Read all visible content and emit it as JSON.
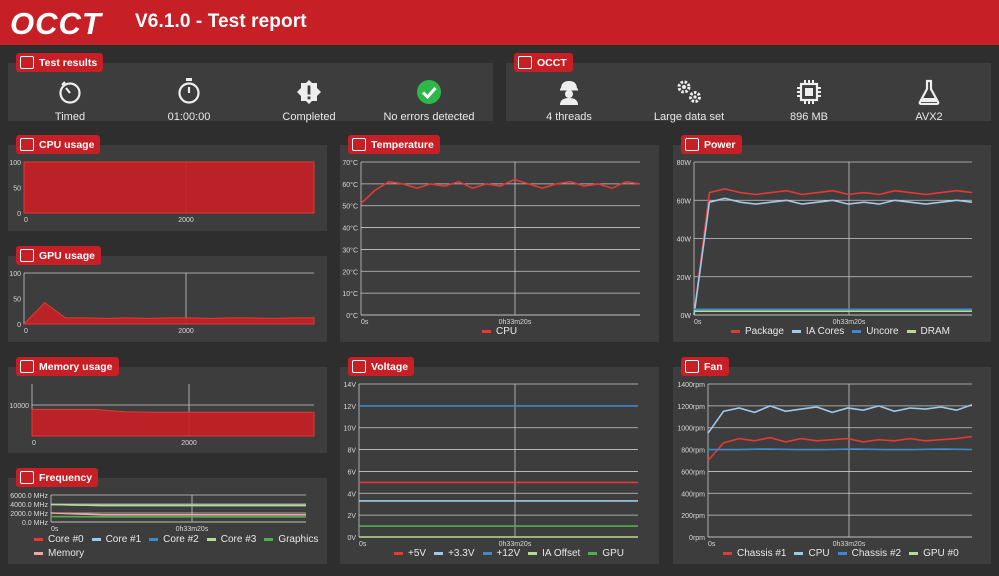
{
  "header": {
    "logo_text": "OCCT",
    "title": "V6.1.0 - Test report"
  },
  "test_results": {
    "label": "Test results",
    "items": [
      {
        "icon": "timer-icon",
        "label": "Timed"
      },
      {
        "icon": "stopwatch-icon",
        "label": "01:00:00"
      },
      {
        "icon": "alert-badge-icon",
        "label": "Completed"
      },
      {
        "icon": "check-circle-icon",
        "label": "No errors detected"
      }
    ]
  },
  "occt_info": {
    "label": "OCCT",
    "items": [
      {
        "icon": "worker-icon",
        "label": "4 threads"
      },
      {
        "icon": "gears-icon",
        "label": "Large data set"
      },
      {
        "icon": "chip-icon",
        "label": "896 MB"
      },
      {
        "icon": "flask-icon",
        "label": "AVX2"
      }
    ]
  },
  "colors": {
    "accent": "#c62026",
    "panel": "#3d3d3d",
    "background": "#2e2e2e",
    "grid": "#cfcfcf"
  },
  "chart_data": [
    {
      "id": "cpu",
      "title": "CPU usage",
      "type": "area",
      "y_ticks": [
        "100",
        "50",
        "0"
      ],
      "x_ticks": [
        "0",
        "2000"
      ],
      "ylim": [
        0,
        100
      ],
      "series": [
        {
          "values": [
            100,
            100,
            100,
            100,
            100,
            100,
            100,
            100,
            100,
            100
          ],
          "color": "#c62026"
        }
      ]
    },
    {
      "id": "gpu",
      "title": "GPU usage",
      "type": "area",
      "y_ticks": [
        "100",
        "50",
        "0"
      ],
      "x_ticks": [
        "0",
        "2000"
      ],
      "ylim": [
        0,
        100
      ],
      "series": [
        {
          "values": [
            0,
            42,
            12,
            12,
            11,
            12,
            11,
            12,
            12,
            11,
            12,
            12,
            11,
            12,
            12
          ],
          "color": "#c62026"
        }
      ]
    },
    {
      "id": "memory",
      "title": "Memory usage",
      "type": "area",
      "y_ticks": [
        "10000"
      ],
      "x_ticks": [
        "0",
        "2000"
      ],
      "ylim": [
        0,
        16000
      ],
      "series": [
        {
          "values": [
            8200,
            8200,
            8200,
            7400,
            7300,
            7300,
            7300,
            7300,
            7300,
            7300
          ],
          "color": "#c62026"
        }
      ]
    },
    {
      "id": "frequency",
      "title": "Frequency",
      "type": "line",
      "y_ticks": [
        "6000.0 MHz",
        "4000.0 MHz",
        "2000.0 MHz",
        "0.0 MHz"
      ],
      "x_ticks": [
        "0s",
        "0h33m20s"
      ],
      "ylim": [
        0,
        6000
      ],
      "series": [
        {
          "name": "Core #0",
          "values": [
            3900,
            3700,
            3700,
            3700,
            3700,
            3700
          ],
          "color": "#e53935"
        },
        {
          "name": "Core #1",
          "values": [
            3900,
            3700,
            3700,
            3700,
            3700,
            3700
          ],
          "color": "#9ecae8"
        },
        {
          "name": "Core #2",
          "values": [
            3900,
            3700,
            3700,
            3700,
            3700,
            3700
          ],
          "color": "#3b8ad0"
        },
        {
          "name": "Core #3",
          "values": [
            3900,
            3700,
            3700,
            3700,
            3700,
            3700
          ],
          "color": "#b7dc8f"
        },
        {
          "name": "Graphics",
          "values": [
            1200,
            1150,
            1150,
            1150,
            1150,
            1150
          ],
          "color": "#4fae4f"
        },
        {
          "name": "Memory",
          "values": [
            2000,
            1600,
            1600,
            1600,
            1600,
            1600
          ],
          "color": "#f4a3a3"
        }
      ]
    },
    {
      "id": "temperature",
      "title": "Temperature",
      "type": "line",
      "y_ticks": [
        "70°C",
        "60°C",
        "50°C",
        "40°C",
        "30°C",
        "20°C",
        "10°C",
        "0°C"
      ],
      "x_ticks": [
        "0s",
        "0h33m20s"
      ],
      "ylim": [
        0,
        70
      ],
      "series": [
        {
          "name": "CPU",
          "values": [
            51,
            57,
            61,
            60,
            58,
            60,
            59,
            61,
            58,
            60,
            59,
            62,
            60,
            58,
            60,
            61,
            59,
            60,
            58,
            61,
            60
          ],
          "color": "#e53935"
        }
      ]
    },
    {
      "id": "voltage",
      "title": "Voltage",
      "type": "line",
      "y_ticks": [
        "14V",
        "12V",
        "10V",
        "8V",
        "6V",
        "4V",
        "2V",
        "0V"
      ],
      "x_ticks": [
        "0s",
        "0h33m20s"
      ],
      "ylim": [
        0,
        14
      ],
      "series": [
        {
          "name": "+5V",
          "values": [
            5.0,
            5.0,
            5.0,
            5.0
          ],
          "color": "#e53935"
        },
        {
          "name": "+3.3V",
          "values": [
            3.3,
            3.3,
            3.3,
            3.3
          ],
          "color": "#9ecae8"
        },
        {
          "name": "+12V",
          "values": [
            12.0,
            12.0,
            12.0,
            12.0
          ],
          "color": "#3b8ad0"
        },
        {
          "name": "IA Offset",
          "values": [
            0,
            0,
            0,
            0
          ],
          "color": "#b7dc8f"
        },
        {
          "name": "GPU",
          "values": [
            1.0,
            1.0,
            1.0,
            1.0
          ],
          "color": "#4fae4f"
        }
      ]
    },
    {
      "id": "power",
      "title": "Power",
      "type": "line",
      "y_ticks": [
        "80W",
        "60W",
        "40W",
        "20W",
        "0W"
      ],
      "x_ticks": [
        "0s",
        "0h33m20s"
      ],
      "ylim": [
        0,
        80
      ],
      "series": [
        {
          "name": "Package",
          "values": [
            0,
            64,
            66,
            64,
            63,
            64,
            65,
            63,
            64,
            65,
            63,
            64,
            63,
            65,
            64,
            63,
            64,
            65,
            64
          ],
          "color": "#e53935"
        },
        {
          "name": "IA Cores",
          "values": [
            0,
            59,
            61,
            59,
            58,
            59,
            60,
            58,
            59,
            60,
            58,
            59,
            58,
            60,
            59,
            58,
            59,
            60,
            59
          ],
          "color": "#9ecae8"
        },
        {
          "name": "Uncore",
          "values": [
            3,
            3,
            3,
            3,
            3,
            3,
            3,
            3,
            3,
            3
          ],
          "color": "#3b8ad0"
        },
        {
          "name": "DRAM",
          "values": [
            2,
            2,
            2,
            2,
            2,
            2,
            2,
            2,
            2,
            2
          ],
          "color": "#b7dc8f"
        }
      ]
    },
    {
      "id": "fan",
      "title": "Fan",
      "type": "line",
      "y_ticks": [
        "1400rpm",
        "1200rpm",
        "1000rpm",
        "800rpm",
        "600rpm",
        "400rpm",
        "200rpm",
        "0rpm"
      ],
      "x_ticks": [
        "0s",
        "0h33m20s"
      ],
      "ylim": [
        0,
        1400
      ],
      "series": [
        {
          "name": "Chassis #1",
          "values": [
            700,
            860,
            900,
            880,
            910,
            870,
            900,
            880,
            890,
            900,
            870,
            890,
            880,
            900,
            880,
            890,
            900,
            920
          ],
          "color": "#e53935"
        },
        {
          "name": "CPU",
          "values": [
            950,
            1150,
            1180,
            1140,
            1200,
            1150,
            1170,
            1190,
            1140,
            1180,
            1160,
            1200,
            1150,
            1180,
            1170,
            1190,
            1160,
            1210
          ],
          "color": "#9ecae8"
        },
        {
          "name": "Chassis #2",
          "values": [
            800,
            800,
            805,
            800,
            800,
            805,
            800,
            800,
            805,
            800
          ],
          "color": "#3b8ad0"
        },
        {
          "name": "GPU #0",
          "values": [],
          "color": "#b7dc8f"
        }
      ]
    }
  ]
}
